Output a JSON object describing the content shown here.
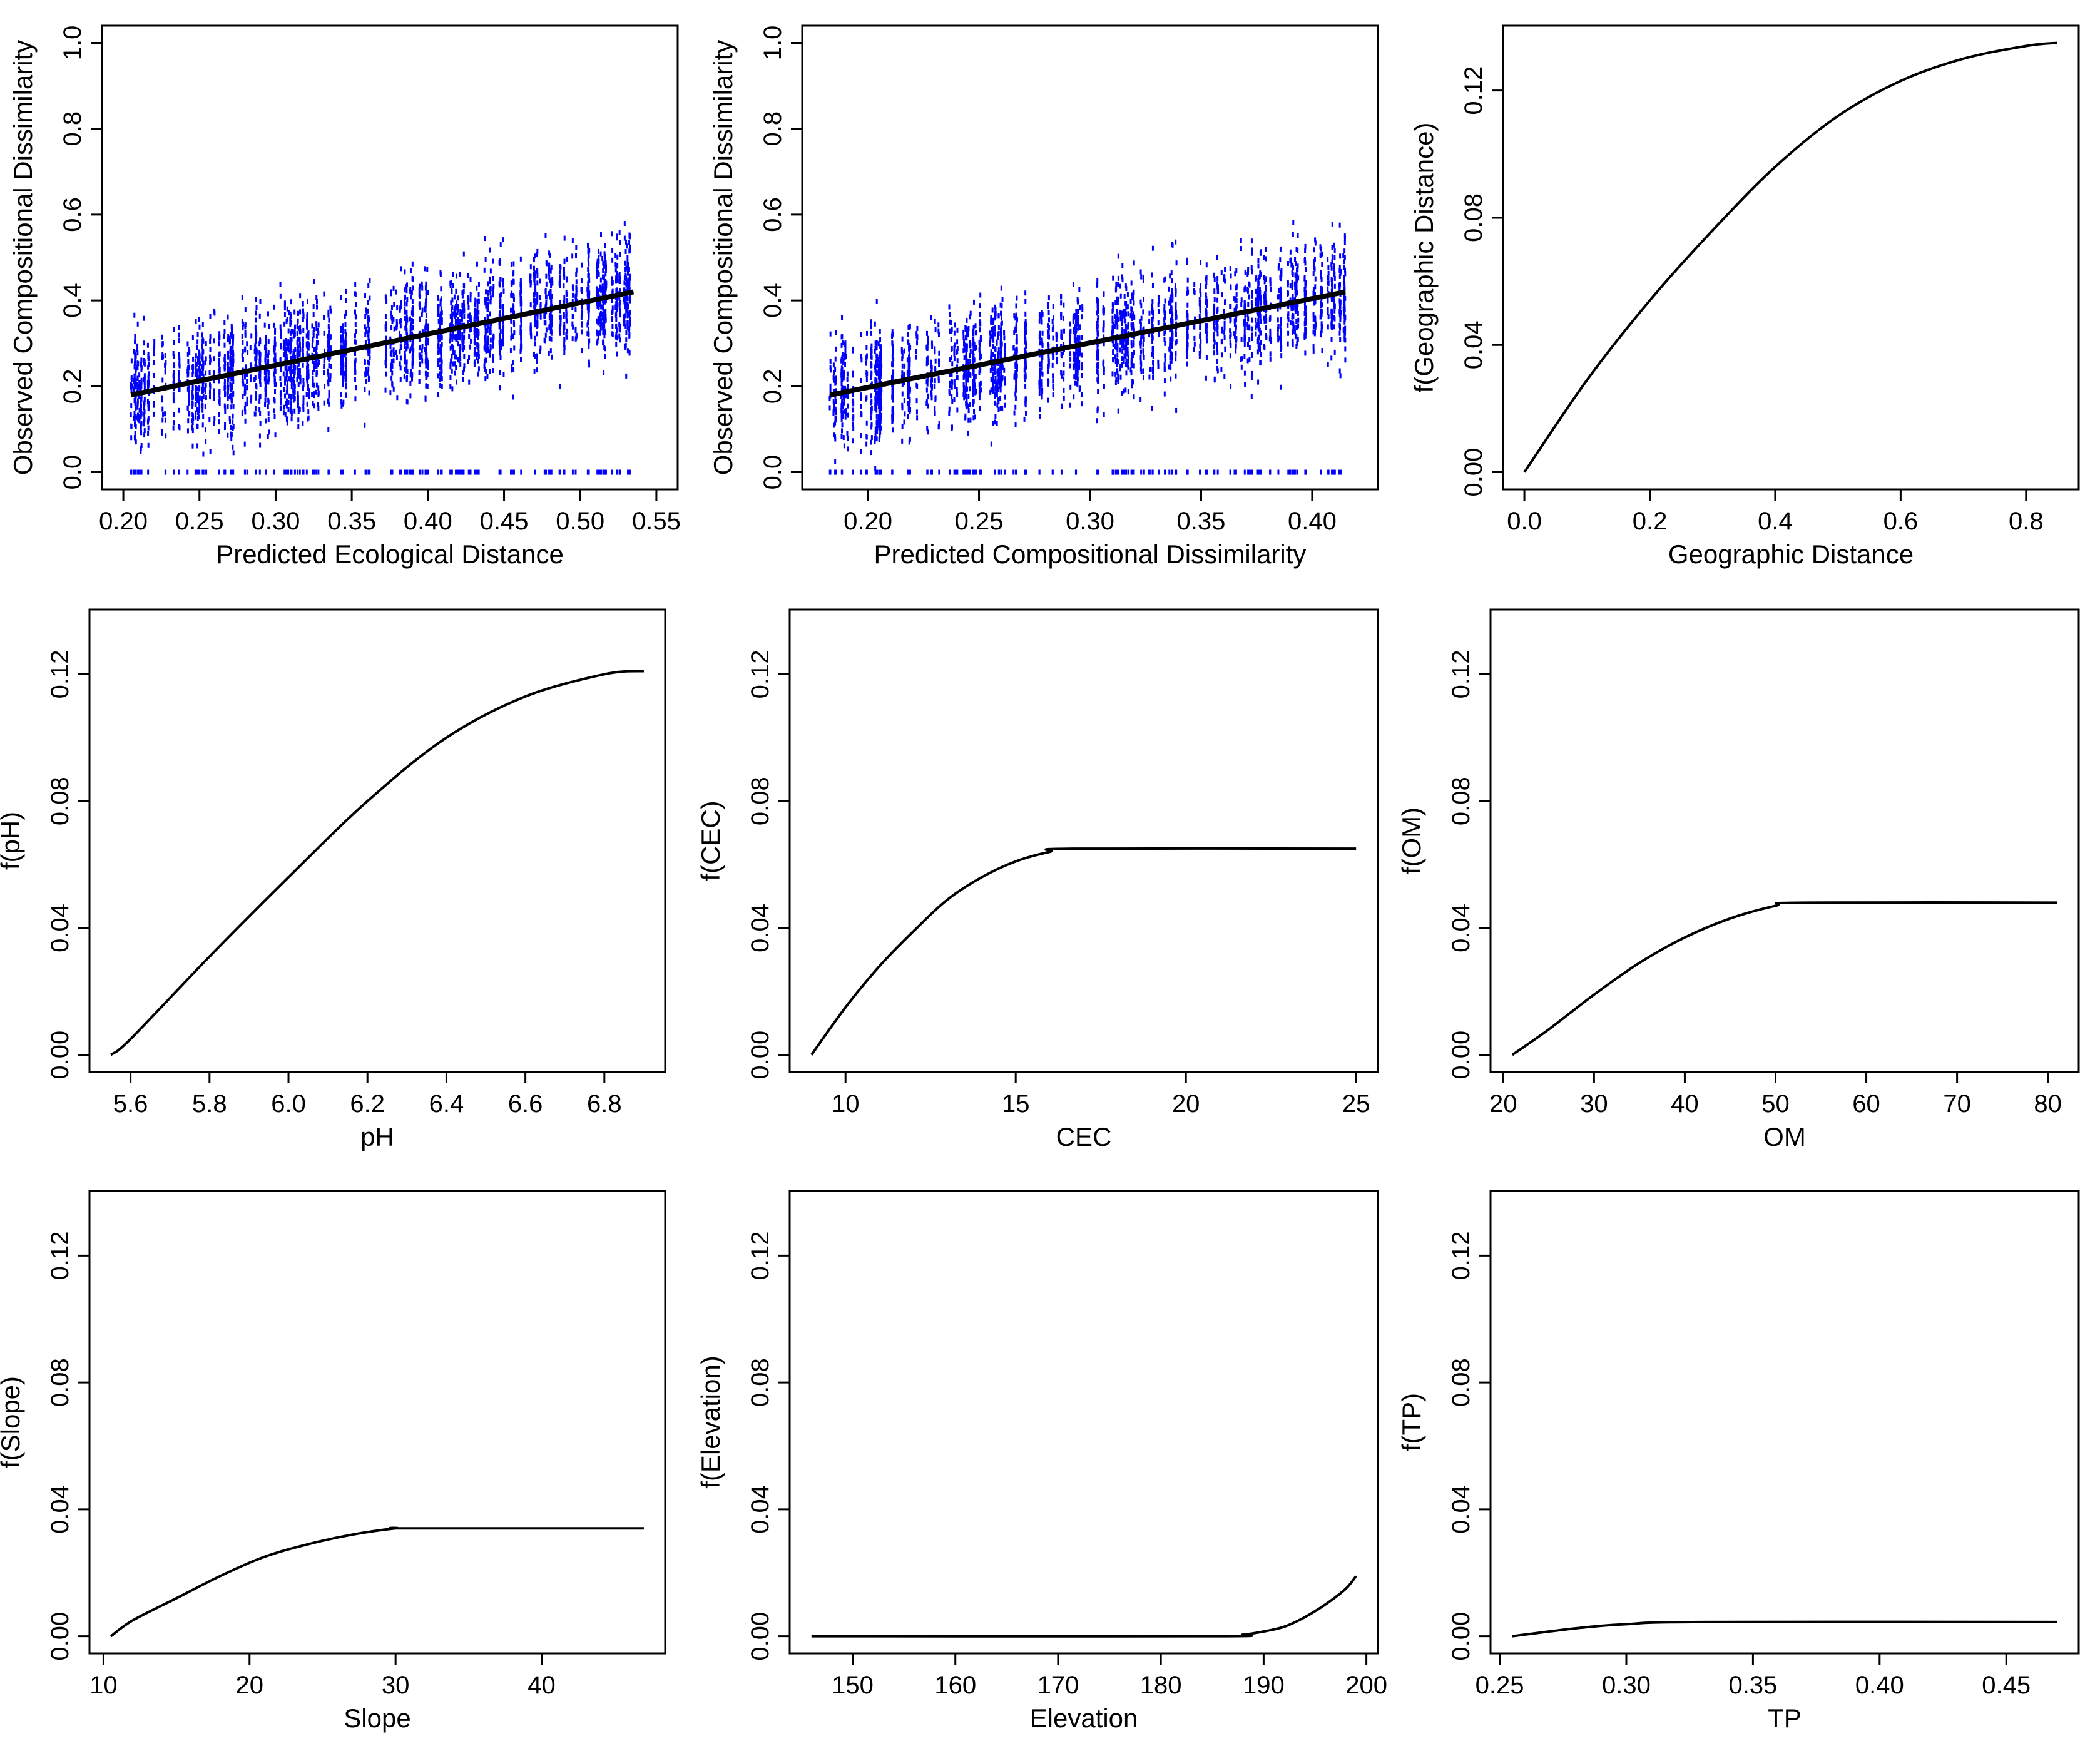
{
  "chart_data": [
    {
      "id": "p1",
      "type": "scatter",
      "xlabel": "Predicted Ecological Distance",
      "ylabel": "Observed Compositional Dissimilarity",
      "xlim": [
        0.2,
        0.55
      ],
      "ylim": [
        0,
        1.0
      ],
      "xticks": [
        "0.20",
        "0.25",
        "0.30",
        "0.35",
        "0.40",
        "0.45",
        "0.50",
        "0.55"
      ],
      "yticks": [
        "0.0",
        "0.2",
        "0.4",
        "0.6",
        "0.8",
        "1.0"
      ],
      "point_color": "#0000ff",
      "x_range_observed": [
        0.205,
        0.535
      ],
      "fit_line": {
        "x": [
          0.205,
          0.535
        ],
        "y": [
          0.18,
          0.42
        ]
      }
    },
    {
      "id": "p2",
      "type": "scatter",
      "xlabel": "Predicted Compositional Dissimilarity",
      "ylabel": "Observed Compositional Dissimilarity",
      "xlim": [
        0.18,
        0.42
      ],
      "ylim": [
        0,
        1.0
      ],
      "xticks": [
        "0.20",
        "0.25",
        "0.30",
        "0.35",
        "0.40"
      ],
      "yticks": [
        "0.0",
        "0.2",
        "0.4",
        "0.6",
        "0.8",
        "1.0"
      ],
      "point_color": "#0000ff",
      "x_range_observed": [
        0.183,
        0.415
      ],
      "fit_line": {
        "x": [
          0.183,
          0.415
        ],
        "y": [
          0.18,
          0.42
        ]
      }
    },
    {
      "id": "p3",
      "type": "line",
      "xlabel": "Geographic Distance",
      "ylabel": "f(Geographic Distance)",
      "xlim": [
        0,
        0.85
      ],
      "ylim": [
        0,
        0.135
      ],
      "xticks": [
        "0.0",
        "0.2",
        "0.4",
        "0.6",
        "0.8"
      ],
      "yticks": [
        "0.00",
        "0.04",
        "0.08",
        "0.12"
      ],
      "series": {
        "x": [
          0.0,
          0.1,
          0.2,
          0.3,
          0.4,
          0.5,
          0.6,
          0.7,
          0.8,
          0.85
        ],
        "y": [
          0.0,
          0.029,
          0.054,
          0.076,
          0.096,
          0.112,
          0.123,
          0.13,
          0.134,
          0.135
        ]
      }
    },
    {
      "id": "p4",
      "type": "line",
      "xlabel": "pH",
      "ylabel": "f(pH)",
      "xlim": [
        5.55,
        6.9
      ],
      "ylim": [
        0,
        0.135
      ],
      "xticks": [
        "5.6",
        "5.8",
        "6.0",
        "6.2",
        "6.4",
        "6.6",
        "6.8"
      ],
      "yticks": [
        "0.00",
        "0.04",
        "0.08",
        "0.12"
      ],
      "series": {
        "x": [
          5.55,
          5.6,
          5.8,
          6.0,
          6.2,
          6.4,
          6.6,
          6.8,
          6.9
        ],
        "y": [
          0.0,
          0.005,
          0.031,
          0.056,
          0.08,
          0.1,
          0.113,
          0.12,
          0.121
        ]
      }
    },
    {
      "id": "p5",
      "type": "line",
      "xlabel": "CEC",
      "ylabel": "f(CEC)",
      "xlim": [
        9,
        25
      ],
      "ylim": [
        0,
        0.135
      ],
      "xticks": [
        "10",
        "15",
        "20",
        "25"
      ],
      "yticks": [
        "0.00",
        "0.04",
        "0.08",
        "0.12"
      ],
      "series": {
        "x": [
          9,
          10,
          11,
          12,
          13,
          14,
          15,
          16,
          16.7,
          25
        ],
        "y": [
          0.0,
          0.015,
          0.028,
          0.039,
          0.049,
          0.056,
          0.061,
          0.064,
          0.065,
          0.065
        ]
      }
    },
    {
      "id": "p6",
      "type": "line",
      "xlabel": "OM",
      "ylabel": "f(OM)",
      "xlim": [
        21,
        81
      ],
      "ylim": [
        0,
        0.135
      ],
      "xticks": [
        "20",
        "30",
        "40",
        "50",
        "60",
        "70",
        "80"
      ],
      "yticks": [
        "0.00",
        "0.04",
        "0.08",
        "0.12"
      ],
      "series": {
        "x": [
          21,
          25,
          30,
          35,
          40,
          45,
          50,
          53,
          81
        ],
        "y": [
          0.0,
          0.008,
          0.019,
          0.029,
          0.037,
          0.043,
          0.047,
          0.048,
          0.048
        ]
      }
    },
    {
      "id": "p7",
      "type": "line",
      "xlabel": "Slope",
      "ylabel": "f(Slope)",
      "xlim": [
        10.5,
        47
      ],
      "ylim": [
        0,
        0.135
      ],
      "xticks": [
        "10",
        "20",
        "30",
        "40"
      ],
      "yticks": [
        "0.00",
        "0.04",
        "0.08",
        "0.12"
      ],
      "series": {
        "x": [
          10.5,
          12,
          15,
          18,
          21,
          24,
          27,
          30,
          31,
          47
        ],
        "y": [
          0.0,
          0.005,
          0.012,
          0.019,
          0.025,
          0.029,
          0.032,
          0.034,
          0.034,
          0.034
        ]
      }
    },
    {
      "id": "p8",
      "type": "line",
      "xlabel": "Elevation",
      "ylabel": "f(Elevation)",
      "xlim": [
        146,
        199
      ],
      "ylim": [
        0,
        0.135
      ],
      "xticks": [
        "150",
        "160",
        "170",
        "180",
        "190",
        "200"
      ],
      "yticks": [
        "0.00",
        "0.04",
        "0.08",
        "0.12"
      ],
      "series": {
        "x": [
          146,
          185,
          188,
          190,
          192,
          194,
          196,
          198,
          199
        ],
        "y": [
          0.0,
          0.0,
          0.0005,
          0.0015,
          0.003,
          0.006,
          0.01,
          0.015,
          0.019
        ]
      }
    },
    {
      "id": "p9",
      "type": "line",
      "xlabel": "TP",
      "ylabel": "f(TP)",
      "xlim": [
        0.255,
        0.47
      ],
      "ylim": [
        0,
        0.135
      ],
      "xticks": [
        "0.25",
        "0.30",
        "0.35",
        "0.40",
        "0.45"
      ],
      "yticks": [
        "0.00",
        "0.04",
        "0.08",
        "0.12"
      ],
      "series": {
        "x": [
          0.255,
          0.28,
          0.3,
          0.33,
          0.47
        ],
        "y": [
          0.0,
          0.0025,
          0.0038,
          0.0045,
          0.0045
        ]
      }
    }
  ]
}
